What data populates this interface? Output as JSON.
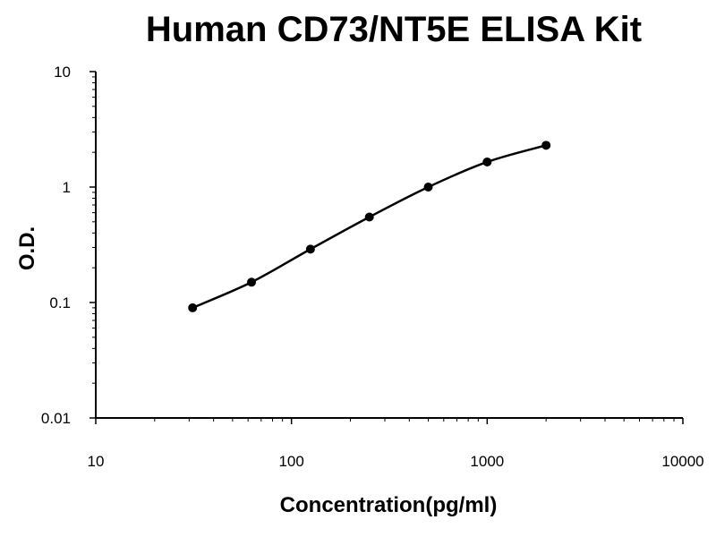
{
  "chart_data": {
    "type": "scatter",
    "title": "Human CD73/NT5E ELISA Kit",
    "xlabel": "Concentration(pg/ml)",
    "ylabel": "O.D.",
    "x_scale": "log",
    "y_scale": "log",
    "xlim": [
      10,
      10000
    ],
    "ylim": [
      0.01,
      10
    ],
    "x_ticks": [
      {
        "value": 10,
        "label": "10"
      },
      {
        "value": 100,
        "label": "100"
      },
      {
        "value": 1000,
        "label": "1000"
      },
      {
        "value": 10000,
        "label": "10000"
      }
    ],
    "y_ticks": [
      {
        "value": 0.01,
        "label": "0.01"
      },
      {
        "value": 0.1,
        "label": "0.1"
      },
      {
        "value": 1,
        "label": "1"
      },
      {
        "value": 10,
        "label": "10"
      }
    ],
    "grid": false,
    "legend": "none",
    "series": [
      {
        "line_color": "#000000",
        "marker_color": "#000000",
        "points": [
          {
            "x": 31.25,
            "y": 0.09
          },
          {
            "x": 62.5,
            "y": 0.15
          },
          {
            "x": 125,
            "y": 0.29
          },
          {
            "x": 250,
            "y": 0.55
          },
          {
            "x": 500,
            "y": 1.0
          },
          {
            "x": 1000,
            "y": 1.65
          },
          {
            "x": 2000,
            "y": 2.3
          }
        ]
      }
    ]
  }
}
